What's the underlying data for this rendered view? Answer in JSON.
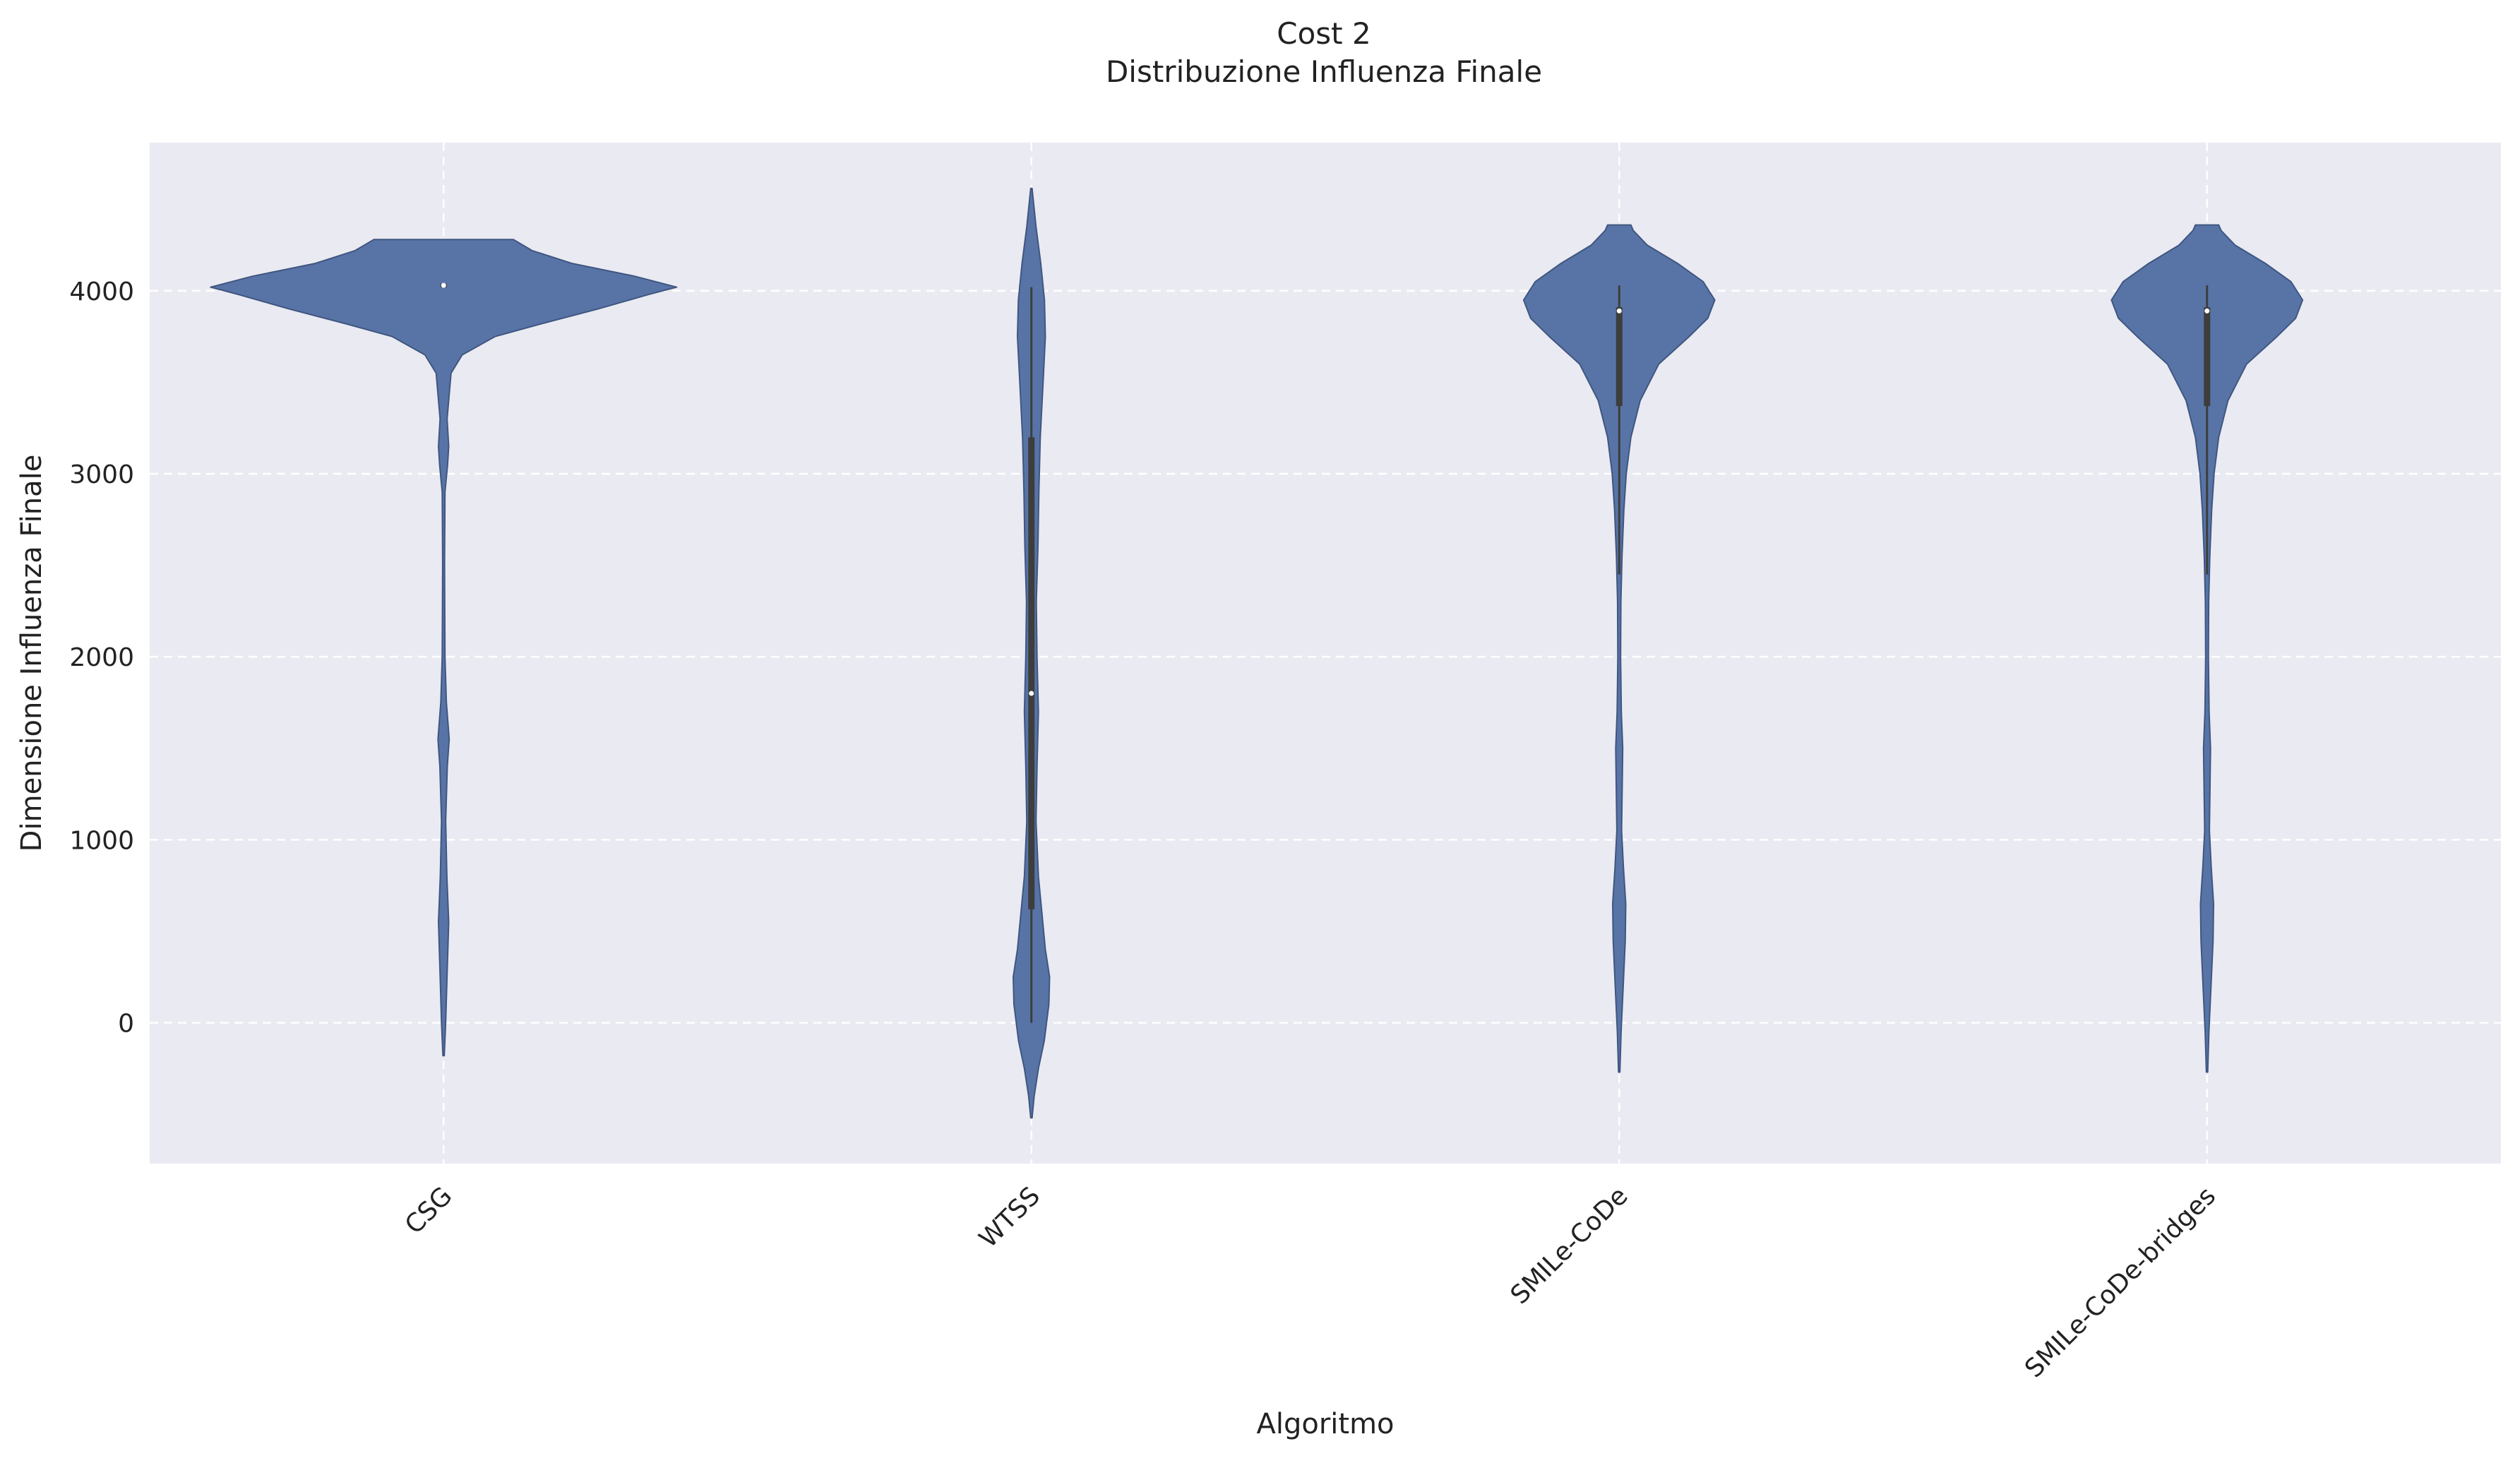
{
  "chart_data": {
    "type": "violin",
    "title": "Cost 2",
    "subtitle": "Distribuzione Influenza Finale",
    "xlabel": "Algoritmo",
    "ylabel": "Dimensione Influenza Finale",
    "categories": [
      "CSG",
      "WTSS",
      "SMILe-CoDe",
      "SMILe-CoDe-bridges"
    ],
    "yticks": [
      0,
      1000,
      2000,
      3000,
      4000
    ],
    "ytick_labels": [
      "0",
      "1000",
      "2000",
      "3000",
      "4000"
    ],
    "ylim": [
      -770,
      4810
    ],
    "grid": true,
    "colors": {
      "violin_fill": "#5874a6",
      "violin_edge": "#3f5680",
      "plot_bg": "#eaeaf2",
      "grid": "#ffffff",
      "box": "#3d3d3d"
    },
    "series": [
      {
        "category": "CSG",
        "density": [
          [
            -180,
            0.003
          ],
          [
            0,
            0.009
          ],
          [
            300,
            0.016
          ],
          [
            550,
            0.022
          ],
          [
            800,
            0.014
          ],
          [
            1100,
            0.009
          ],
          [
            1400,
            0.016
          ],
          [
            1550,
            0.024
          ],
          [
            1750,
            0.012
          ],
          [
            2000,
            0.006
          ],
          [
            2500,
            0.004
          ],
          [
            2900,
            0.006
          ],
          [
            3050,
            0.017
          ],
          [
            3150,
            0.022
          ],
          [
            3300,
            0.015
          ],
          [
            3550,
            0.032
          ],
          [
            3650,
            0.08
          ],
          [
            3750,
            0.22
          ],
          [
            3820,
            0.42
          ],
          [
            3900,
            0.66
          ],
          [
            3980,
            0.88
          ],
          [
            4020,
            1.0
          ],
          [
            4080,
            0.82
          ],
          [
            4150,
            0.55
          ],
          [
            4220,
            0.38
          ],
          [
            4280,
            0.3
          ]
        ],
        "box": {
          "q1": 4020,
          "median": 4030,
          "q3": 4040,
          "whisker_low": 4020,
          "whisker_high": 4040
        }
      },
      {
        "category": "WTSS",
        "density": [
          [
            -520,
            0.003
          ],
          [
            -400,
            0.012
          ],
          [
            -250,
            0.03
          ],
          [
            -100,
            0.055
          ],
          [
            100,
            0.075
          ],
          [
            250,
            0.078
          ],
          [
            400,
            0.06
          ],
          [
            600,
            0.045
          ],
          [
            800,
            0.03
          ],
          [
            1100,
            0.02
          ],
          [
            1400,
            0.024
          ],
          [
            1700,
            0.03
          ],
          [
            2000,
            0.024
          ],
          [
            2300,
            0.021
          ],
          [
            2600,
            0.028
          ],
          [
            2900,
            0.032
          ],
          [
            3200,
            0.038
          ],
          [
            3500,
            0.05
          ],
          [
            3750,
            0.06
          ],
          [
            3950,
            0.056
          ],
          [
            4150,
            0.04
          ],
          [
            4350,
            0.02
          ],
          [
            4560,
            0.003
          ]
        ],
        "box": {
          "q1": 620,
          "median": 1800,
          "q3": 3200,
          "whisker_low": 0,
          "whisker_high": 4020
        }
      },
      {
        "category": "SMILe-CoDe",
        "density": [
          [
            -270,
            0.003
          ],
          [
            -50,
            0.008
          ],
          [
            200,
            0.017
          ],
          [
            450,
            0.026
          ],
          [
            650,
            0.028
          ],
          [
            850,
            0.018
          ],
          [
            1050,
            0.01
          ],
          [
            1300,
            0.013
          ],
          [
            1500,
            0.015
          ],
          [
            1700,
            0.009
          ],
          [
            2000,
            0.006
          ],
          [
            2300,
            0.007
          ],
          [
            2550,
            0.012
          ],
          [
            2800,
            0.02
          ],
          [
            3000,
            0.03
          ],
          [
            3200,
            0.05
          ],
          [
            3400,
            0.09
          ],
          [
            3600,
            0.17
          ],
          [
            3750,
            0.3
          ],
          [
            3850,
            0.38
          ],
          [
            3950,
            0.41
          ],
          [
            4050,
            0.36
          ],
          [
            4150,
            0.25
          ],
          [
            4250,
            0.12
          ],
          [
            4330,
            0.06
          ],
          [
            4360,
            0.05
          ]
        ],
        "box": {
          "q1": 3370,
          "median": 3890,
          "q3": 3910,
          "whisker_low": 2450,
          "whisker_high": 4030
        }
      },
      {
        "category": "SMILe-CoDe-bridges",
        "density": [
          [
            -270,
            0.003
          ],
          [
            -50,
            0.008
          ],
          [
            200,
            0.017
          ],
          [
            450,
            0.026
          ],
          [
            650,
            0.028
          ],
          [
            850,
            0.018
          ],
          [
            1050,
            0.01
          ],
          [
            1300,
            0.013
          ],
          [
            1500,
            0.015
          ],
          [
            1700,
            0.009
          ],
          [
            2000,
            0.006
          ],
          [
            2300,
            0.007
          ],
          [
            2550,
            0.012
          ],
          [
            2800,
            0.02
          ],
          [
            3000,
            0.03
          ],
          [
            3200,
            0.05
          ],
          [
            3400,
            0.09
          ],
          [
            3600,
            0.17
          ],
          [
            3750,
            0.3
          ],
          [
            3850,
            0.38
          ],
          [
            3950,
            0.41
          ],
          [
            4050,
            0.36
          ],
          [
            4150,
            0.25
          ],
          [
            4250,
            0.12
          ],
          [
            4330,
            0.06
          ],
          [
            4360,
            0.05
          ]
        ],
        "box": {
          "q1": 3370,
          "median": 3890,
          "q3": 3910,
          "whisker_low": 2450,
          "whisker_high": 4030
        }
      }
    ]
  }
}
